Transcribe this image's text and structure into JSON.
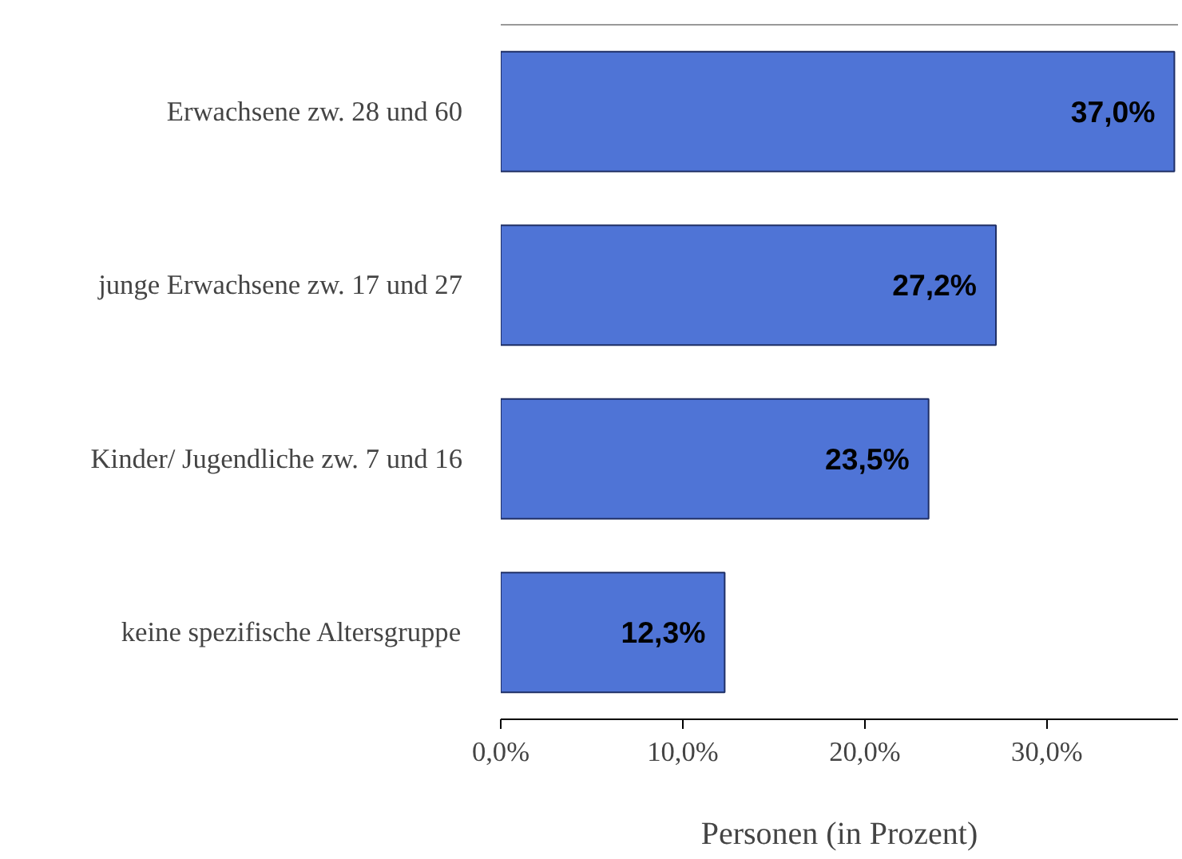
{
  "chart_data": {
    "type": "bar",
    "orientation": "horizontal",
    "xlabel": "Personen (in Prozent)",
    "categories": [
      "Erwachsene zw. 28 und 60",
      "junge Erwachsene zw. 17 und 27",
      "Kinder/ Jugendliche zw. 7 und 16",
      "keine spezifische Altersgruppe"
    ],
    "values": [
      37.0,
      27.2,
      23.5,
      12.3
    ],
    "value_labels": [
      "37,0%",
      "27,2%",
      "23,5%",
      "12,3%"
    ],
    "color": "#4f74d6",
    "xlim": [
      0,
      37.2
    ],
    "xticks": [
      {
        "value": 0,
        "label": "0,0%"
      },
      {
        "value": 10,
        "label": "10,0%"
      },
      {
        "value": 20,
        "label": "20,0%"
      },
      {
        "value": 30,
        "label": "30,0%"
      }
    ],
    "grid": false
  }
}
